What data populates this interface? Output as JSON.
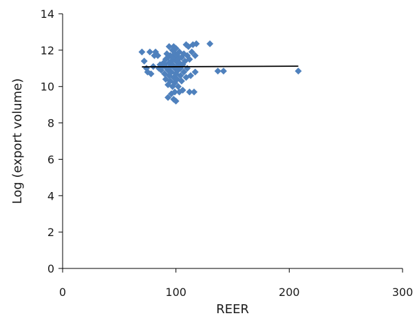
{
  "chart_data": {
    "type": "scatter",
    "xlabel": "REER",
    "ylabel": "Log (export volume)",
    "xlim": [
      0,
      300
    ],
    "ylim": [
      0,
      14
    ],
    "x_ticks": [
      "0",
      "100",
      "200",
      "300"
    ],
    "y_ticks": [
      "0",
      "2",
      "4",
      "6",
      "8",
      "10",
      "12",
      "14"
    ],
    "grid": false,
    "legend": "none",
    "marker_color": "#4F81BD",
    "trend_color": "#000000",
    "trendline": {
      "x": [
        70,
        208
      ],
      "y": [
        11.08,
        11.12
      ]
    },
    "points": [
      {
        "x": 70,
        "y": 11.9
      },
      {
        "x": 72,
        "y": 11.4
      },
      {
        "x": 74,
        "y": 11.0
      },
      {
        "x": 75,
        "y": 10.8
      },
      {
        "x": 77,
        "y": 11.9
      },
      {
        "x": 78,
        "y": 10.7
      },
      {
        "x": 80,
        "y": 11.1
      },
      {
        "x": 81,
        "y": 11.7
      },
      {
        "x": 82,
        "y": 11.9
      },
      {
        "x": 84,
        "y": 11.7
      },
      {
        "x": 85,
        "y": 11.0
      },
      {
        "x": 86,
        "y": 11.2
      },
      {
        "x": 87,
        "y": 10.9
      },
      {
        "x": 88,
        "y": 11.1
      },
      {
        "x": 89,
        "y": 11.3
      },
      {
        "x": 90,
        "y": 10.7
      },
      {
        "x": 90,
        "y": 11.2
      },
      {
        "x": 91,
        "y": 11.5
      },
      {
        "x": 91,
        "y": 10.4
      },
      {
        "x": 92,
        "y": 11.0
      },
      {
        "x": 92,
        "y": 11.8
      },
      {
        "x": 93,
        "y": 10.9
      },
      {
        "x": 93,
        "y": 11.6
      },
      {
        "x": 93,
        "y": 10.1
      },
      {
        "x": 93,
        "y": 9.4
      },
      {
        "x": 94,
        "y": 12.2
      },
      {
        "x": 94,
        "y": 11.3
      },
      {
        "x": 94,
        "y": 10.6
      },
      {
        "x": 95,
        "y": 11.1
      },
      {
        "x": 95,
        "y": 11.7
      },
      {
        "x": 95,
        "y": 10.3
      },
      {
        "x": 96,
        "y": 9.6
      },
      {
        "x": 96,
        "y": 11.4
      },
      {
        "x": 96,
        "y": 10.8
      },
      {
        "x": 97,
        "y": 12.0
      },
      {
        "x": 97,
        "y": 11.2
      },
      {
        "x": 97,
        "y": 10.0
      },
      {
        "x": 98,
        "y": 11.6
      },
      {
        "x": 98,
        "y": 10.5
      },
      {
        "x": 98,
        "y": 9.3
      },
      {
        "x": 98,
        "y": 12.2
      },
      {
        "x": 99,
        "y": 11.0
      },
      {
        "x": 99,
        "y": 11.8
      },
      {
        "x": 99,
        "y": 10.2
      },
      {
        "x": 99,
        "y": 9.7
      },
      {
        "x": 100,
        "y": 11.4
      },
      {
        "x": 100,
        "y": 10.7
      },
      {
        "x": 100,
        "y": 9.2
      },
      {
        "x": 100,
        "y": 12.1
      },
      {
        "x": 101,
        "y": 11.1
      },
      {
        "x": 101,
        "y": 10.4
      },
      {
        "x": 101,
        "y": 11.7
      },
      {
        "x": 102,
        "y": 10.9
      },
      {
        "x": 102,
        "y": 11.5
      },
      {
        "x": 102,
        "y": 10.0
      },
      {
        "x": 103,
        "y": 11.3
      },
      {
        "x": 103,
        "y": 9.7
      },
      {
        "x": 103,
        "y": 11.9
      },
      {
        "x": 104,
        "y": 10.6
      },
      {
        "x": 104,
        "y": 11.0
      },
      {
        "x": 105,
        "y": 11.6
      },
      {
        "x": 105,
        "y": 10.3
      },
      {
        "x": 106,
        "y": 11.2
      },
      {
        "x": 106,
        "y": 9.8
      },
      {
        "x": 107,
        "y": 11.8
      },
      {
        "x": 107,
        "y": 10.8
      },
      {
        "x": 108,
        "y": 11.4
      },
      {
        "x": 109,
        "y": 12.3
      },
      {
        "x": 109,
        "y": 10.5
      },
      {
        "x": 110,
        "y": 11.7
      },
      {
        "x": 110,
        "y": 11.0
      },
      {
        "x": 111,
        "y": 12.2
      },
      {
        "x": 112,
        "y": 11.5
      },
      {
        "x": 112,
        "y": 9.7
      },
      {
        "x": 113,
        "y": 10.6
      },
      {
        "x": 114,
        "y": 11.9
      },
      {
        "x": 115,
        "y": 12.3
      },
      {
        "x": 116,
        "y": 9.7
      },
      {
        "x": 117,
        "y": 11.7
      },
      {
        "x": 117,
        "y": 10.8
      },
      {
        "x": 118,
        "y": 12.35
      },
      {
        "x": 130,
        "y": 12.35
      },
      {
        "x": 137,
        "y": 10.85
      },
      {
        "x": 142,
        "y": 10.85
      },
      {
        "x": 208,
        "y": 10.85
      }
    ]
  }
}
